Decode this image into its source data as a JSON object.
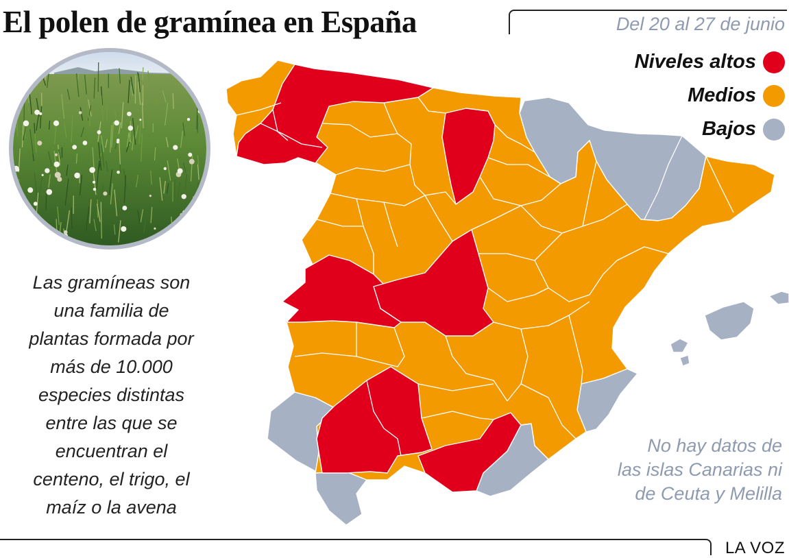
{
  "header": {
    "title": "El polen de gramínea en España",
    "date_range": "Del 20 al 27 de junio"
  },
  "legend": [
    {
      "label": "Niveles altos",
      "level": "high",
      "color": "#e0001b"
    },
    {
      "label": "Medios",
      "level": "medium",
      "color": "#f39a00"
    },
    {
      "label": "Bajos",
      "level": "low",
      "color": "#a6b1c4"
    }
  ],
  "description": [
    "Las gramíneas son",
    "una familia de",
    "plantas formada por",
    "más de 10.000",
    "especies distintas",
    "entre las que se",
    "encuentran el",
    "centeno, el trigo, el",
    "maíz o la avena"
  ],
  "note": [
    "No hay datos de",
    "las islas Canarias ni",
    "de Ceuta y Melilla"
  ],
  "brand": "LA VOZ",
  "photo": {
    "subject": "grass-meadow"
  },
  "map": {
    "region": "Spain",
    "colors": {
      "high": "#e0001b",
      "medium": "#f39a00",
      "low": "#a6b1c4",
      "border": "#ffffff"
    },
    "high_areas": [
      "north-west",
      "north-central",
      "west",
      "center-west",
      "center-south",
      "south-east"
    ],
    "low_areas": [
      "north-east",
      "south-west",
      "south-coast-east",
      "east-coast",
      "balearic-islands"
    ]
  }
}
